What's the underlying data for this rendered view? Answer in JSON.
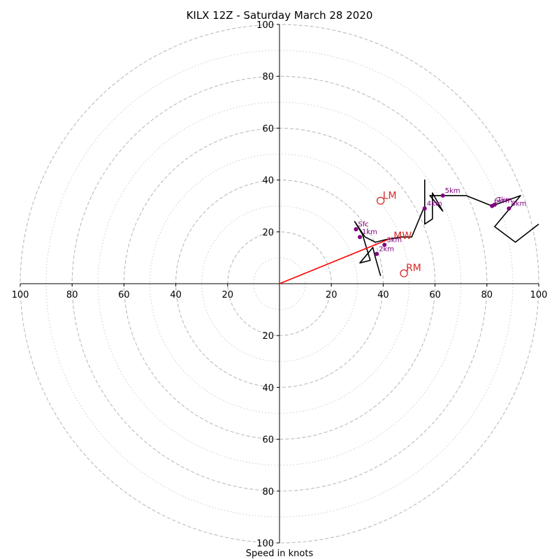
{
  "chart_data": {
    "type": "hodograph",
    "title": "KILX 12Z - Saturday March 28 2020",
    "xlabel": "Speed in knots",
    "ylabel": "",
    "xlim": [
      -100,
      100
    ],
    "ylim": [
      -100,
      100
    ],
    "ring_major": [
      20,
      40,
      60,
      80,
      100
    ],
    "ring_minor": [
      10,
      30,
      50,
      70,
      90
    ],
    "axis_ticks": [
      20,
      40,
      60,
      80,
      100
    ],
    "hodograph_trace": [
      [
        39,
        3
      ],
      [
        37,
        10
      ],
      [
        36,
        14
      ],
      [
        31,
        8
      ],
      [
        35,
        9
      ],
      [
        32,
        19
      ],
      [
        29,
        24
      ],
      [
        33,
        18
      ],
      [
        37,
        16
      ],
      [
        41,
        17
      ],
      [
        47,
        18
      ],
      [
        51,
        18
      ],
      [
        56,
        30
      ],
      [
        56,
        40
      ],
      [
        56,
        23
      ],
      [
        59,
        25
      ],
      [
        59,
        35
      ],
      [
        63,
        28
      ],
      [
        58,
        34
      ],
      [
        72,
        34
      ],
      [
        82,
        30
      ],
      [
        93,
        34
      ],
      [
        83,
        22
      ],
      [
        91,
        16
      ],
      [
        100,
        23
      ]
    ],
    "height_markers": [
      {
        "label": "Sfc",
        "u": 29.5,
        "v": 21
      },
      {
        "label": "1km",
        "u": 31,
        "v": 18
      },
      {
        "label": "2km",
        "u": 37.5,
        "v": 11.5
      },
      {
        "label": "3km",
        "u": 40.5,
        "v": 15
      },
      {
        "label": "4km",
        "u": 56,
        "v": 29
      },
      {
        "label": "5km",
        "u": 63,
        "v": 34
      },
      {
        "label": "6km",
        "u": 82,
        "v": 30
      },
      {
        "label": "7km",
        "u": 83,
        "v": 30.5
      },
      {
        "label": "8km",
        "u": 88.5,
        "v": 29
      }
    ],
    "storm_motion": [
      {
        "label": "LM",
        "u": 39,
        "v": 32
      },
      {
        "label": "RM",
        "u": 48,
        "v": 4
      }
    ],
    "mean_wind": {
      "label": "MW",
      "u": 44,
      "v": 18
    },
    "shear_vector": {
      "from": [
        0,
        0
      ],
      "to": [
        43,
        17.5
      ]
    },
    "colors": {
      "trace": "#000000",
      "markers": "#800080",
      "storm_motion": "#d62728",
      "shear": "#ff0000",
      "grid_major": "#bbbbbb",
      "grid_minor": "#cccccc"
    }
  }
}
